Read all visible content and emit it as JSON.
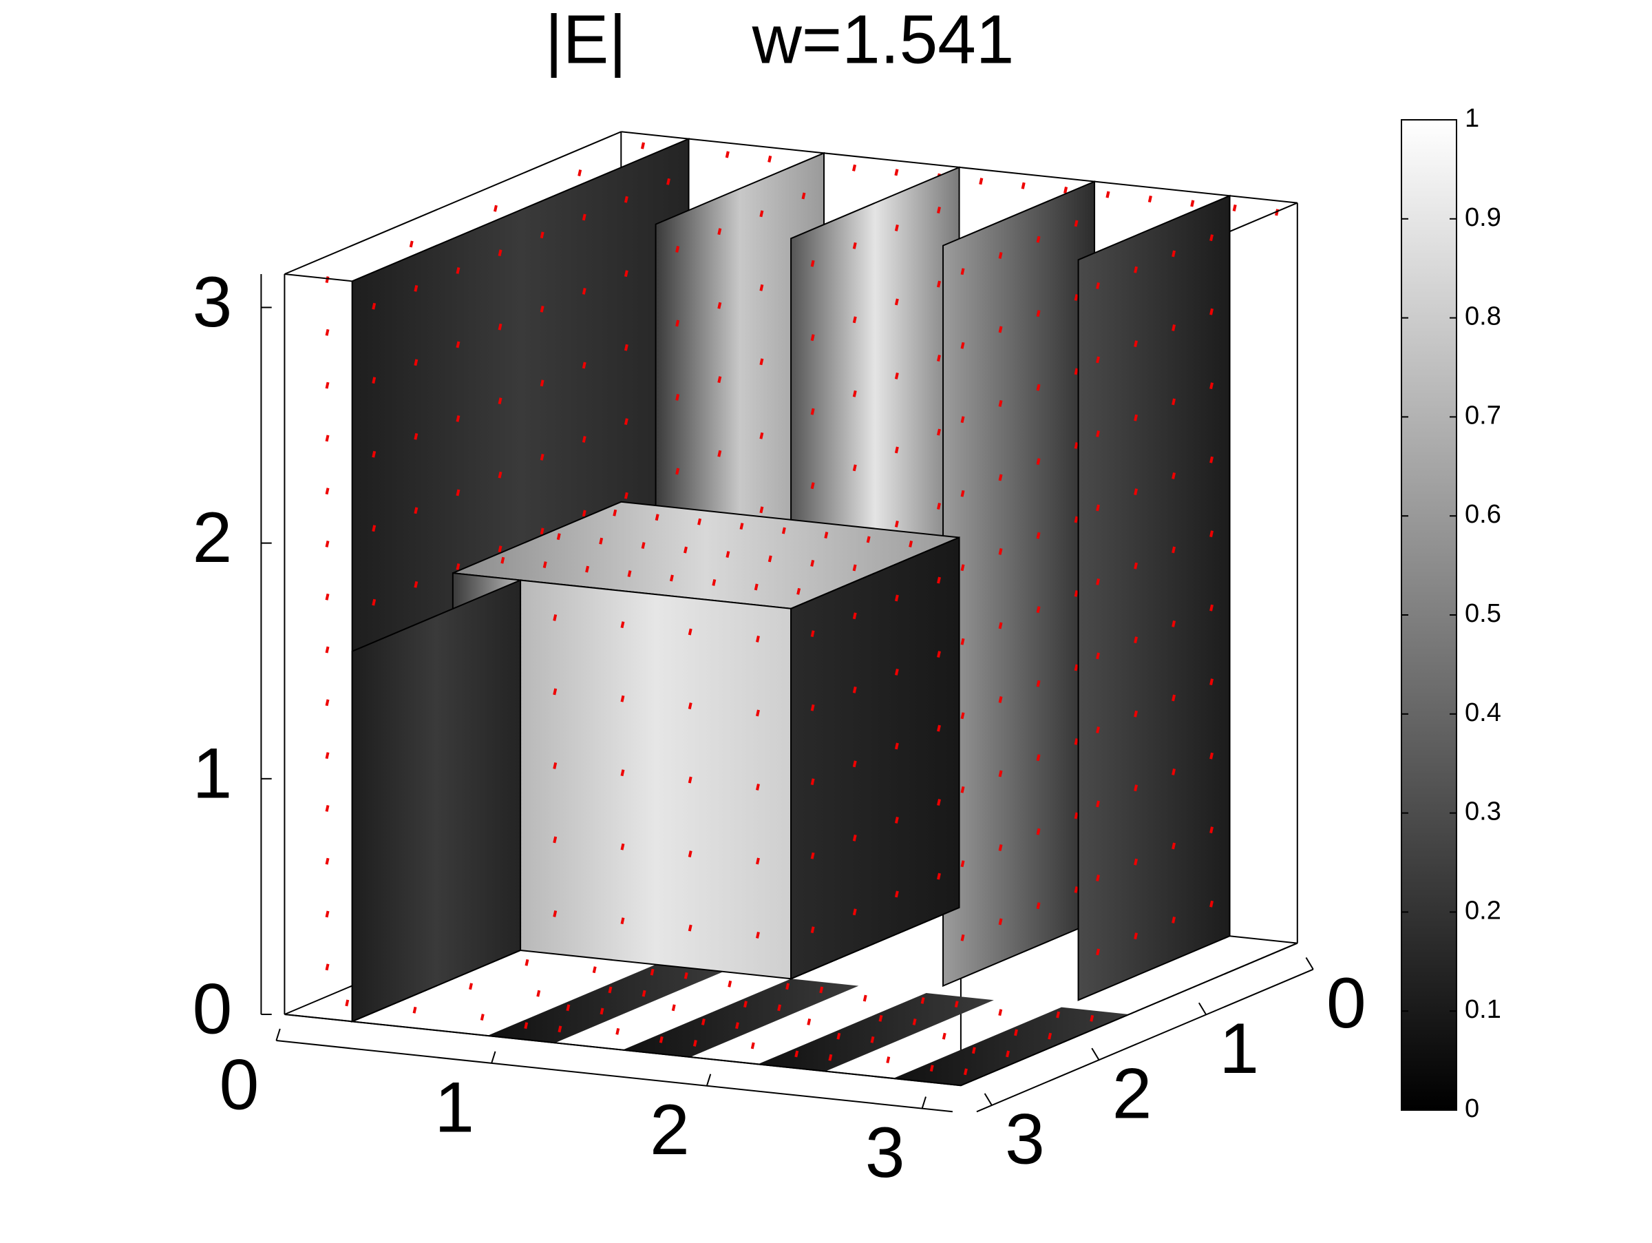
{
  "chart_data": {
    "type": "slice3d",
    "title": "|E|",
    "subtitle": "w=1.541",
    "xlim": [
      0,
      3.1416
    ],
    "ylim": [
      0,
      3.1416
    ],
    "zlim": [
      0,
      3.1416
    ],
    "xticks": [
      0,
      1,
      2,
      3
    ],
    "yticks": [
      0,
      1,
      2,
      3
    ],
    "zticks": [
      0,
      1,
      2,
      3
    ],
    "colorbar": {
      "lim": [
        0,
        1
      ],
      "ticks": [
        0,
        0.1,
        0.2,
        0.3,
        0.4,
        0.5,
        0.6,
        0.7,
        0.8,
        0.9,
        1
      ]
    }
  }
}
